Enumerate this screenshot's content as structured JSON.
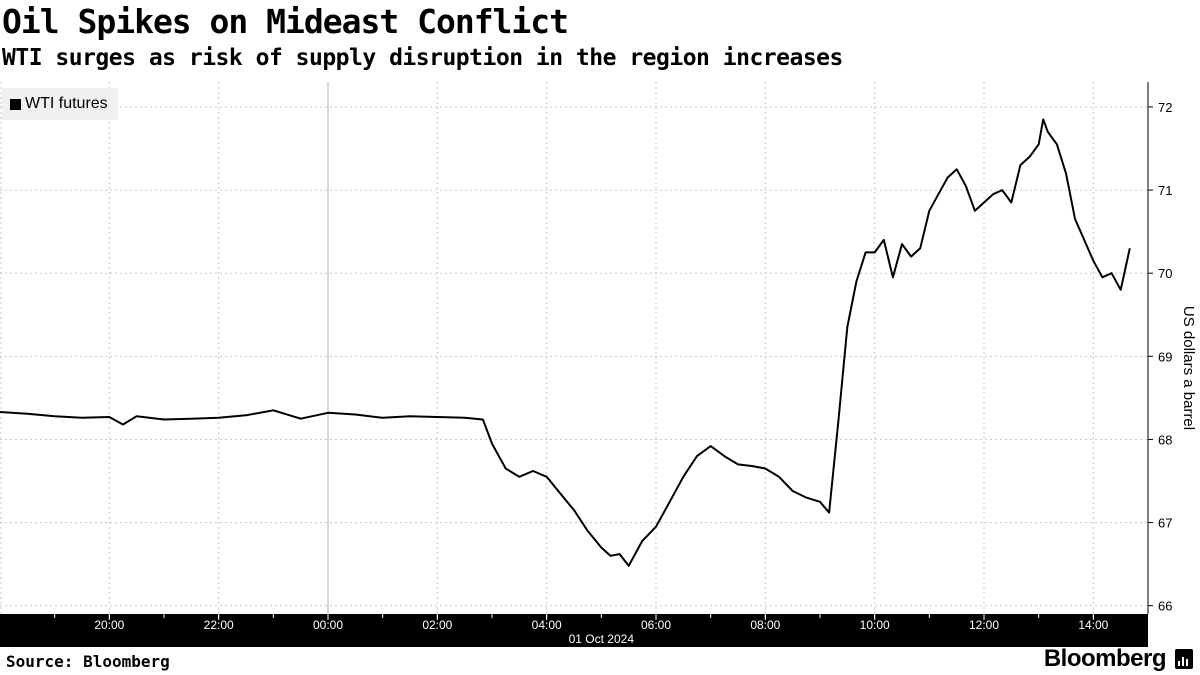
{
  "chart_data": {
    "type": "line",
    "title": "Oil Spikes on Mideast Conflict",
    "subtitle": "WTI surges as risk of supply disruption in the region increases",
    "ylabel": "US dollars a barrel",
    "xlabel": "",
    "date_label": "01 Oct 2024",
    "legend_position": "top-left",
    "grid": true,
    "ylim": [
      65.9,
      72.3
    ],
    "y_ticks": [
      66,
      67,
      68,
      69,
      70,
      71,
      72
    ],
    "x_range": [
      "18:00",
      "15:00"
    ],
    "x_ticks": [
      "20:00",
      "22:00",
      "00:00",
      "02:00",
      "04:00",
      "06:00",
      "08:00",
      "10:00",
      "12:00",
      "14:00"
    ],
    "series": [
      {
        "name": "WTI futures",
        "color": "#000000",
        "x": [
          "18:00",
          "18:30",
          "19:00",
          "19:30",
          "20:00",
          "20:15",
          "20:30",
          "21:00",
          "21:30",
          "22:00",
          "22:30",
          "23:00",
          "23:30",
          "00:00",
          "00:30",
          "01:00",
          "01:30",
          "02:00",
          "02:30",
          "02:50",
          "03:00",
          "03:15",
          "03:30",
          "03:45",
          "04:00",
          "04:15",
          "04:30",
          "04:45",
          "05:00",
          "05:10",
          "05:20",
          "05:30",
          "05:45",
          "06:00",
          "06:15",
          "06:30",
          "06:45",
          "07:00",
          "07:15",
          "07:30",
          "07:45",
          "08:00",
          "08:15",
          "08:30",
          "08:45",
          "09:00",
          "09:10",
          "09:20",
          "09:30",
          "09:40",
          "09:50",
          "10:00",
          "10:10",
          "10:20",
          "10:30",
          "10:40",
          "10:50",
          "11:00",
          "11:10",
          "11:20",
          "11:30",
          "11:40",
          "11:50",
          "12:00",
          "12:10",
          "12:20",
          "12:30",
          "12:40",
          "12:50",
          "13:00",
          "13:05",
          "13:10",
          "13:20",
          "13:30",
          "13:40",
          "13:50",
          "14:00",
          "14:10",
          "14:20",
          "14:30",
          "14:40"
        ],
        "values": [
          68.33,
          68.31,
          68.28,
          68.26,
          68.27,
          68.18,
          68.28,
          68.24,
          68.25,
          68.26,
          68.29,
          68.35,
          68.25,
          68.32,
          68.3,
          68.26,
          68.28,
          68.27,
          68.26,
          68.24,
          67.95,
          67.65,
          67.55,
          67.62,
          67.55,
          67.35,
          67.15,
          66.9,
          66.7,
          66.6,
          66.62,
          66.48,
          66.78,
          66.95,
          67.25,
          67.55,
          67.8,
          67.92,
          67.8,
          67.7,
          67.68,
          67.65,
          67.55,
          67.38,
          67.3,
          67.25,
          67.12,
          68.2,
          69.35,
          69.9,
          70.25,
          70.25,
          70.4,
          69.95,
          70.35,
          70.2,
          70.3,
          70.75,
          70.95,
          71.15,
          71.25,
          71.05,
          70.75,
          70.85,
          70.95,
          71.0,
          70.85,
          71.3,
          71.4,
          71.55,
          71.85,
          71.7,
          71.55,
          71.2,
          70.65,
          70.4,
          70.15,
          69.95,
          70.0,
          69.8,
          70.3
        ]
      }
    ]
  },
  "footer": {
    "source": "Source: Bloomberg",
    "brand": "Bloomberg"
  }
}
